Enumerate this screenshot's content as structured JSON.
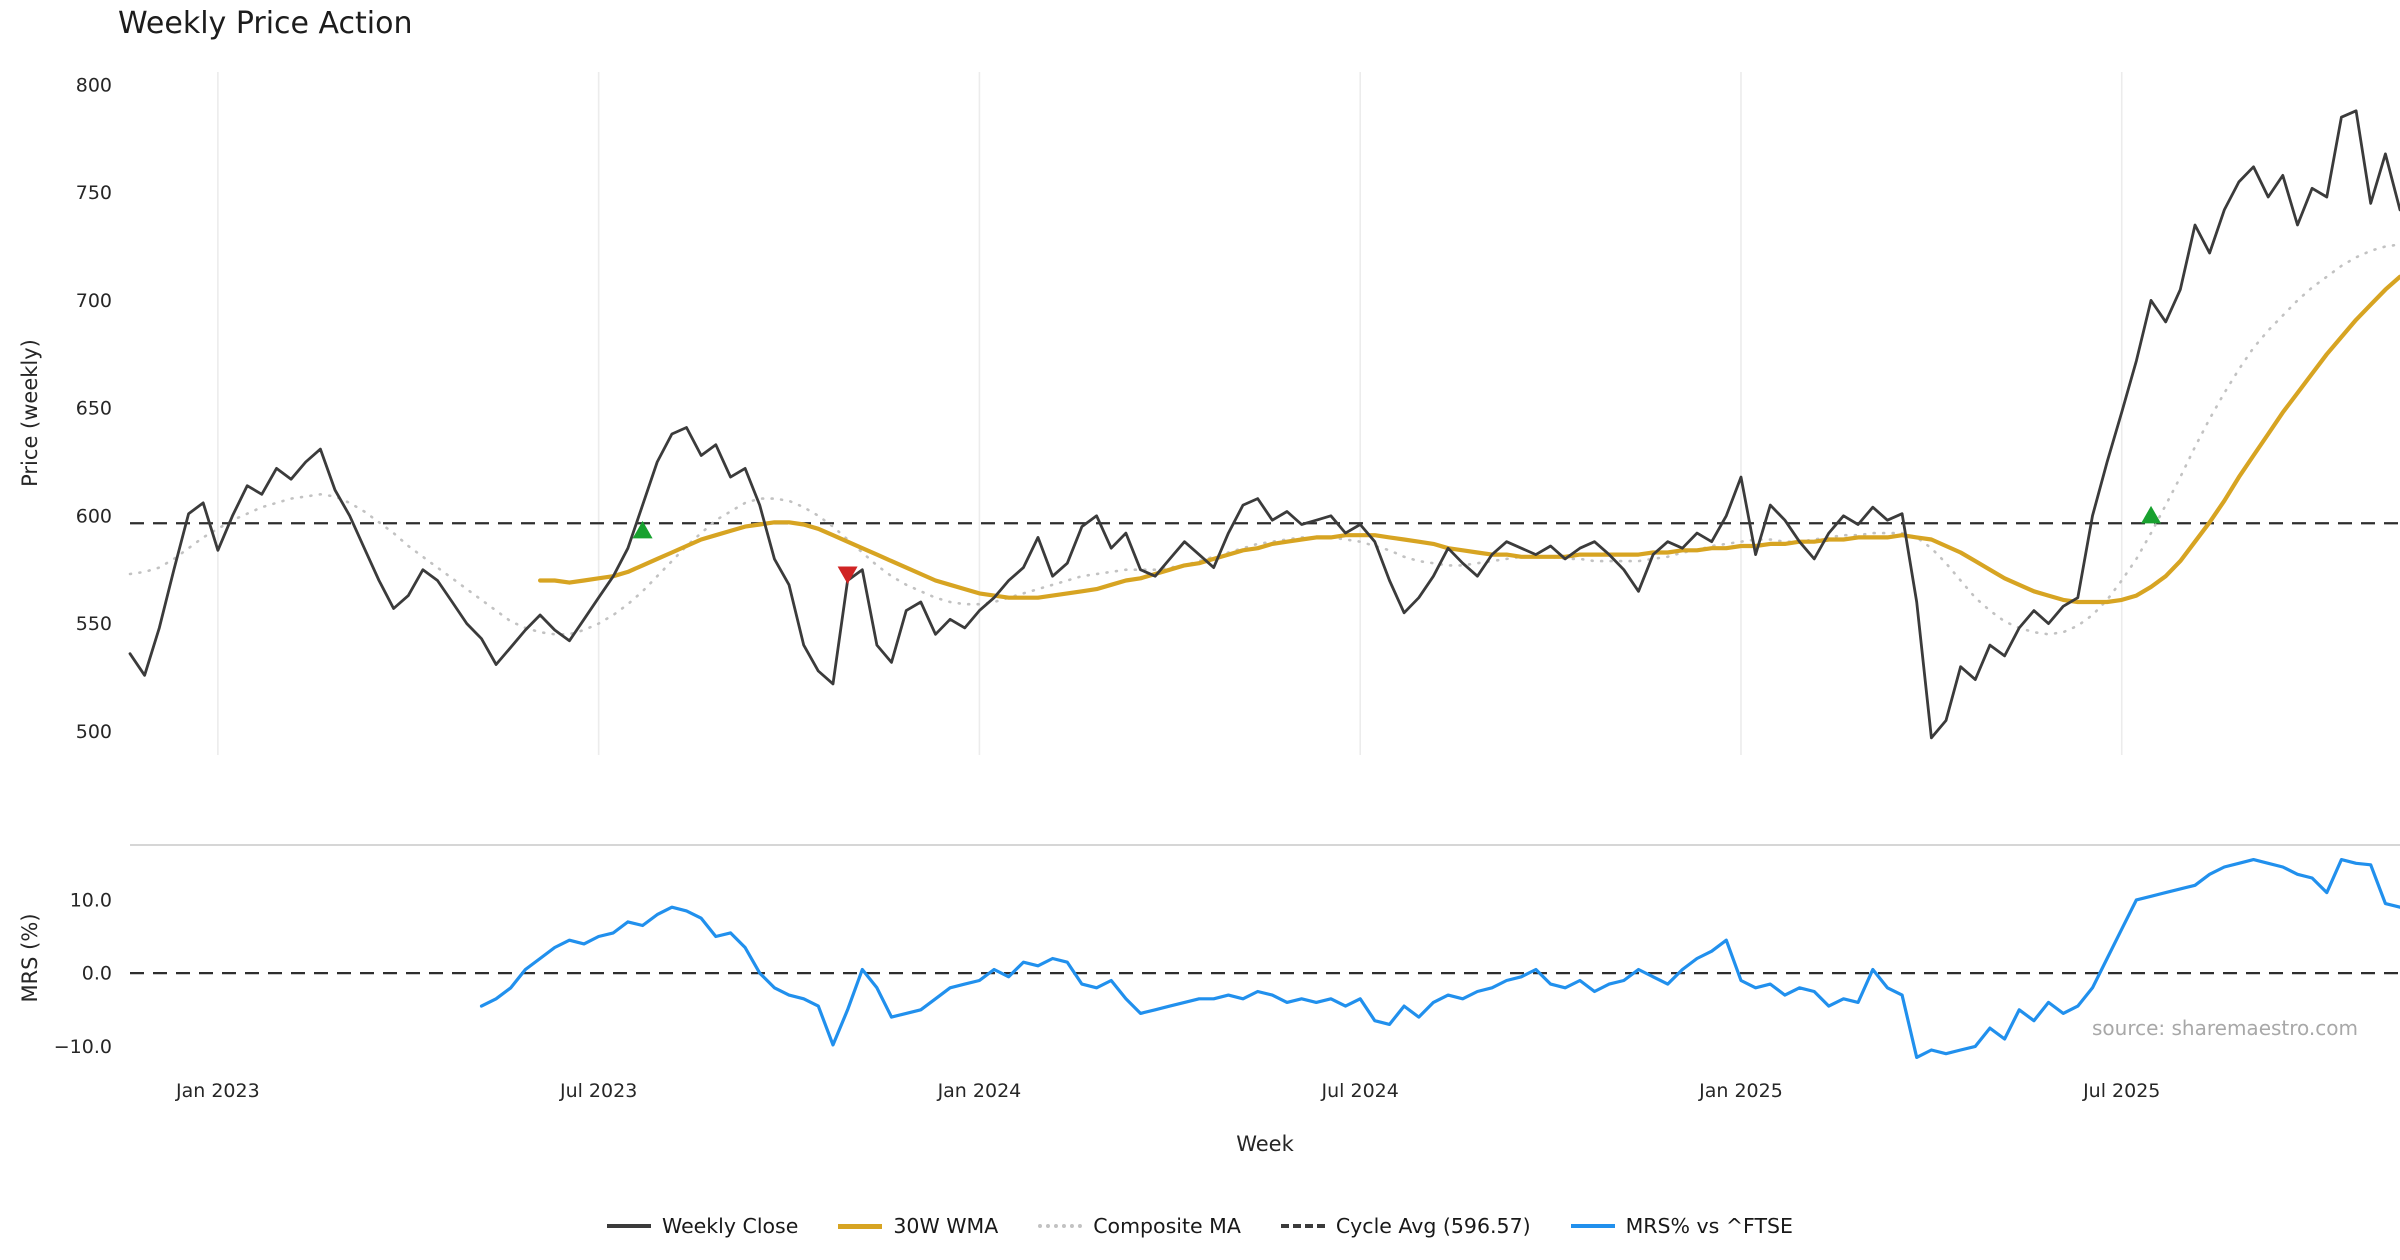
{
  "title": "Weekly Price Action",
  "source": "source: sharemaestro.com",
  "chart_data": {
    "type": "line",
    "title": "Weekly Price Action",
    "xlabel": "Week",
    "x_range": [
      0,
      155
    ],
    "xticks": [
      {
        "week": 6,
        "label": "Jan 2023"
      },
      {
        "week": 32,
        "label": "Jul 2023"
      },
      {
        "week": 58,
        "label": "Jan 2024"
      },
      {
        "week": 84,
        "label": "Jul 2024"
      },
      {
        "week": 110,
        "label": "Jan 2025"
      },
      {
        "week": 136,
        "label": "Jul 2025"
      }
    ],
    "price_panel": {
      "ylabel": "Price (weekly)",
      "ylim": [
        489,
        806
      ],
      "yticks": [
        {
          "v": 500,
          "label": "500"
        },
        {
          "v": 550,
          "label": "550"
        },
        {
          "v": 600,
          "label": "600"
        },
        {
          "v": 650,
          "label": "650"
        },
        {
          "v": 700,
          "label": "700"
        },
        {
          "v": 750,
          "label": "750"
        },
        {
          "v": 800,
          "label": "800"
        }
      ],
      "cycle_avg": 596.57,
      "grid_color": "#ececec",
      "series": [
        {
          "name": "Weekly Close",
          "color": "#3b3b3b",
          "style": "solid",
          "width": 2.8,
          "start_week": 0,
          "values": [
            536,
            526,
            548,
            575,
            601,
            606,
            584,
            600,
            614,
            610,
            622,
            617,
            625,
            631,
            612,
            600,
            585,
            570,
            557,
            563,
            575,
            570,
            560,
            550,
            543,
            531,
            539,
            547,
            554,
            547,
            542,
            552,
            562,
            572,
            585,
            605,
            625,
            638,
            641,
            628,
            633,
            618,
            622,
            605,
            580,
            568,
            540,
            528,
            522,
            570,
            575,
            540,
            532,
            556,
            560,
            545,
            552,
            548,
            556,
            562,
            570,
            576,
            590,
            572,
            578,
            595,
            600,
            585,
            592,
            575,
            572,
            580,
            588,
            582,
            576,
            592,
            605,
            608,
            598,
            602,
            596,
            598,
            600,
            592,
            596,
            588,
            570,
            555,
            562,
            572,
            585,
            578,
            572,
            582,
            588,
            585,
            582,
            586,
            580,
            585,
            588,
            582,
            575,
            565,
            582,
            588,
            585,
            592,
            588,
            600,
            618,
            582,
            605,
            598,
            588,
            580,
            592,
            600,
            596,
            604,
            598,
            601,
            560,
            497,
            505,
            530,
            524,
            540,
            535,
            548,
            556,
            550,
            558,
            562,
            600,
            625,
            648,
            672,
            700,
            690,
            705,
            735,
            722,
            742,
            755,
            762,
            748,
            758,
            735,
            752,
            748,
            785,
            788,
            745,
            768,
            742
          ]
        },
        {
          "name": "30W WMA",
          "color": "#d7a422",
          "style": "solid",
          "width": 4.2,
          "start_week": 28,
          "values": [
            570,
            570,
            569,
            570,
            571,
            572,
            574,
            577,
            580,
            583,
            586,
            589,
            591,
            593,
            595,
            596,
            597,
            597,
            596,
            594,
            591,
            588,
            585,
            582,
            579,
            576,
            573,
            570,
            568,
            566,
            564,
            563,
            562,
            562,
            562,
            563,
            564,
            565,
            566,
            568,
            570,
            571,
            573,
            575,
            577,
            578,
            580,
            582,
            584,
            585,
            587,
            588,
            589,
            590,
            590,
            591,
            591,
            591,
            590,
            589,
            588,
            587,
            585,
            584,
            583,
            582,
            582,
            581,
            581,
            581,
            581,
            582,
            582,
            582,
            582,
            582,
            583,
            583,
            584,
            584,
            585,
            585,
            586,
            586,
            587,
            587,
            588,
            588,
            589,
            589,
            590,
            590,
            590,
            591,
            590,
            589,
            586,
            583,
            579,
            575,
            571,
            568,
            565,
            563,
            561,
            560,
            560,
            560,
            561,
            563,
            567,
            572,
            579,
            588,
            597,
            607,
            618,
            628,
            638,
            648,
            657,
            666,
            675,
            683,
            691,
            698,
            705,
            711
          ]
        },
        {
          "name": "Composite MA",
          "color": "#c2c2c2",
          "style": "dotted",
          "width": 2.6,
          "start_week": 0,
          "values": [
            573,
            574,
            576,
            580,
            585,
            590,
            594,
            598,
            601,
            604,
            606,
            608,
            609,
            610,
            609,
            606,
            602,
            597,
            592,
            586,
            581,
            576,
            571,
            566,
            561,
            556,
            551,
            548,
            546,
            545,
            545,
            547,
            550,
            554,
            559,
            565,
            572,
            579,
            586,
            592,
            598,
            602,
            606,
            608,
            608,
            607,
            604,
            600,
            595,
            589,
            583,
            577,
            572,
            568,
            565,
            562,
            560,
            559,
            559,
            560,
            562,
            564,
            566,
            568,
            570,
            572,
            573,
            574,
            575,
            575,
            575,
            576,
            577,
            579,
            581,
            583,
            585,
            587,
            588,
            589,
            590,
            590,
            590,
            589,
            588,
            586,
            584,
            581,
            579,
            578,
            577,
            577,
            578,
            579,
            580,
            581,
            581,
            581,
            580,
            580,
            579,
            579,
            579,
            579,
            580,
            581,
            583,
            584,
            586,
            587,
            588,
            589,
            589,
            588,
            588,
            589,
            590,
            591,
            591,
            592,
            592,
            592,
            590,
            585,
            578,
            570,
            562,
            556,
            551,
            548,
            546,
            545,
            546,
            549,
            554,
            561,
            570,
            580,
            592,
            605,
            618,
            632,
            645,
            657,
            668,
            678,
            686,
            693,
            700,
            706,
            711,
            716,
            720,
            723,
            725,
            726
          ]
        }
      ],
      "markers": [
        {
          "type": "buy",
          "week": 35,
          "price": 593
        },
        {
          "type": "sell",
          "week": 49,
          "price": 573
        },
        {
          "type": "buy",
          "week": 138,
          "price": 600
        }
      ],
      "marker_colors": {
        "buy": "#18a12f",
        "sell": "#d02424"
      }
    },
    "mrs_panel": {
      "ylabel": "MRS (%)",
      "ylim": [
        -13.5,
        17.5
      ],
      "yticks": [
        {
          "v": 10,
          "label": "10.0"
        },
        {
          "v": 0,
          "label": "0.0"
        },
        {
          "v": -10,
          "label": "−10.0"
        }
      ],
      "zero_line": 0,
      "series": [
        {
          "name": "MRS% vs ^FTSE",
          "color": "#2190ed",
          "style": "solid",
          "width": 3.2,
          "start_week": 24,
          "values": [
            -4.5,
            -3.5,
            -2,
            0.5,
            2,
            3.5,
            4.5,
            4,
            5,
            5.5,
            7,
            6.5,
            8,
            9,
            8.5,
            7.5,
            5,
            5.5,
            3.5,
            0,
            -2,
            -3,
            -3.5,
            -4.5,
            -9.8,
            -5,
            0.5,
            -2,
            -6,
            -5.5,
            -5,
            -3.5,
            -2,
            -1.5,
            -1,
            0.5,
            -0.5,
            1.5,
            1,
            2,
            1.5,
            -1.5,
            -2,
            -1,
            -3.5,
            -5.5,
            -5,
            -4.5,
            -4,
            -3.5,
            -3.5,
            -3,
            -3.5,
            -2.5,
            -3,
            -4,
            -3.5,
            -4,
            -3.5,
            -4.5,
            -3.5,
            -6.5,
            -7,
            -4.5,
            -6,
            -4,
            -3,
            -3.5,
            -2.5,
            -2,
            -1,
            -0.5,
            0.5,
            -1.5,
            -2,
            -1,
            -2.5,
            -1.5,
            -1,
            0.5,
            -0.5,
            -1.5,
            0.5,
            2,
            3,
            4.5,
            -1,
            -2,
            -1.5,
            -3,
            -2,
            -2.5,
            -4.5,
            -3.5,
            -4,
            0.5,
            -2,
            -3,
            -11.5,
            -10.5,
            -11,
            -10.5,
            -10,
            -7.5,
            -9,
            -5,
            -6.5,
            -4,
            -5.5,
            -4.5,
            -2,
            2,
            6,
            10,
            10.5,
            11,
            11.5,
            12,
            13.5,
            14.5,
            15,
            15.5,
            15,
            14.5,
            13.5,
            13,
            11,
            15.5,
            15,
            14.8,
            9.5,
            9
          ]
        }
      ]
    },
    "legend": [
      {
        "label": "Weekly Close",
        "color": "#3b3b3b",
        "style": "solid"
      },
      {
        "label": "30W WMA",
        "color": "#d7a422",
        "style": "solid"
      },
      {
        "label": "Composite MA",
        "color": "#c2c2c2",
        "style": "dotted"
      },
      {
        "label": "Cycle Avg (596.57)",
        "color": "#3b3b3b",
        "style": "dashed"
      },
      {
        "label": "MRS% vs ^FTSE",
        "color": "#2190ed",
        "style": "solid"
      }
    ]
  }
}
